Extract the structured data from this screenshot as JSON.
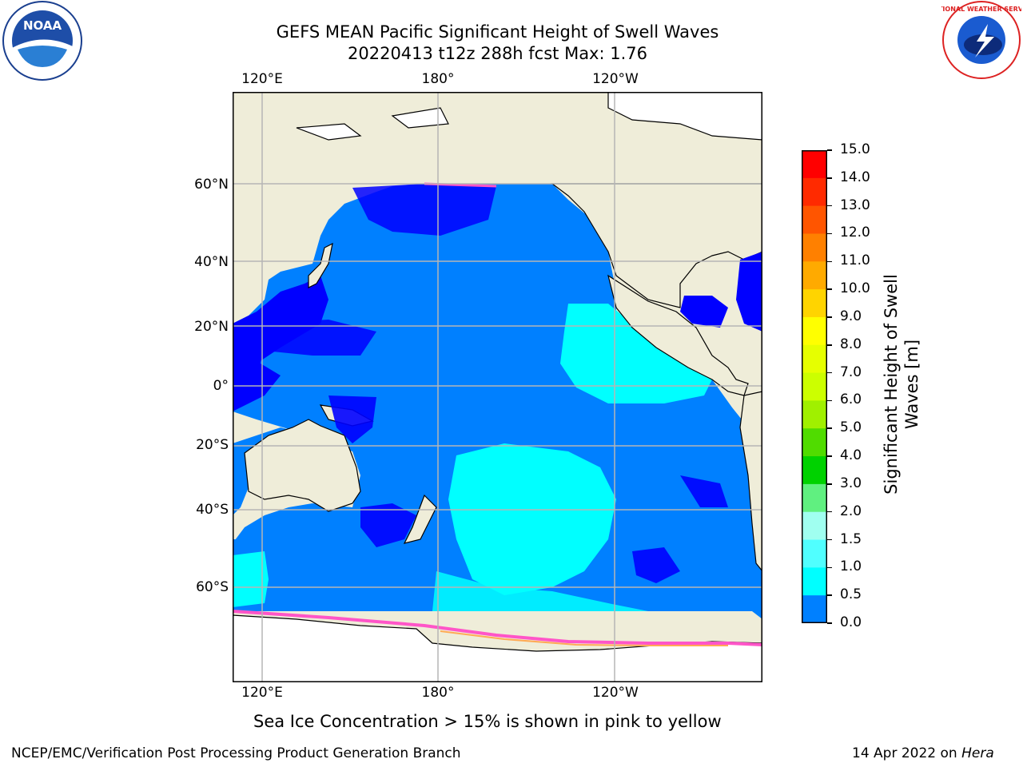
{
  "header": {
    "title": "GEFS MEAN Pacific Significant Height of Swell Waves",
    "subtitle": "20220413 t12z 288h fcst   Max: 1.76"
  },
  "logos": {
    "left": {
      "icon": "noaa-logo-icon",
      "text": "NOAA"
    },
    "right": {
      "icon": "nws-logo-icon",
      "text": "NATIONAL WEATHER SERVICE"
    }
  },
  "map": {
    "lon_labels": [
      "120°E",
      "180°",
      "120°W"
    ],
    "lat_labels": [
      "60°N",
      "40°N",
      "20°N",
      "0°",
      "20°S",
      "40°S",
      "60°S"
    ],
    "colors": {
      "land": "#efedd9",
      "sea_ice": "#ffffff",
      "grid": "#b5b5b5"
    }
  },
  "colorbar": {
    "label_line1": "Significant Height of Swell",
    "label_line2": "Waves [m]",
    "ticks": [
      "15.0",
      "14.0",
      "13.0",
      "12.0",
      "11.0",
      "10.0",
      "9.0",
      "8.0",
      "7.0",
      "6.0",
      "5.0",
      "4.0",
      "3.0",
      "2.0",
      "1.5",
      "1.0",
      "0.5",
      "0.0"
    ],
    "colors": [
      "#ff0000",
      "#ff2a00",
      "#ff5500",
      "#ff8000",
      "#ffaa00",
      "#ffd400",
      "#ffff00",
      "#e6ff00",
      "#ccff00",
      "#a0f000",
      "#50dc00",
      "#00d200",
      "#60f080",
      "#a0fff0",
      "#50ffff",
      "#00ffff",
      "#0080ff",
      "#0000ff"
    ]
  },
  "caption": "Sea Ice Concentration > 15% is shown in pink to yellow",
  "footer": {
    "left": "NCEP/EMC/Verification Post Processing Product Generation Branch",
    "date": "14 Apr 2022 on",
    "machine": "Hera"
  }
}
